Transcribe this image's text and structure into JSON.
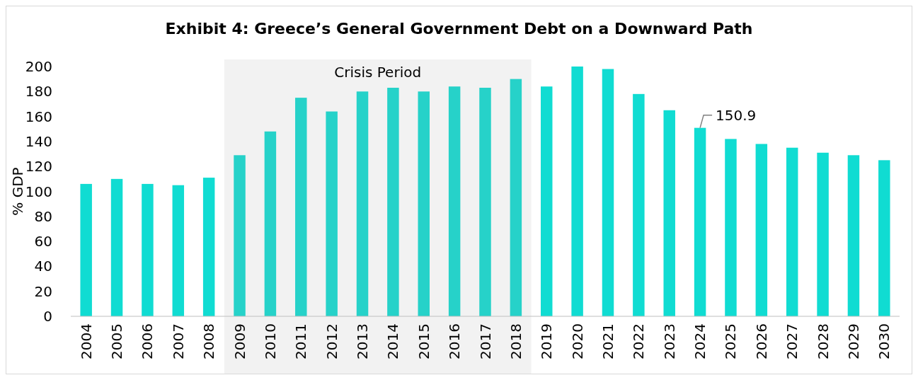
{
  "chart_data": {
    "type": "bar",
    "title": "Exhibit 4: Greece’s General Government Debt on a Downward Path",
    "ylabel": "% GDP",
    "categories": [
      "2004",
      "2005",
      "2006",
      "2007",
      "2008",
      "2009",
      "2010",
      "2011",
      "2012",
      "2013",
      "2014",
      "2015",
      "2016",
      "2017",
      "2018",
      "2019",
      "2020",
      "2021",
      "2022",
      "2023",
      "2024",
      "2025",
      "2026",
      "2027",
      "2028",
      "2029",
      "2030"
    ],
    "values": [
      106,
      110,
      106,
      105,
      111,
      129,
      148,
      175,
      164,
      180,
      183,
      180,
      184,
      183,
      190,
      184,
      200,
      198,
      178,
      165,
      150.9,
      142,
      138,
      135,
      131,
      129,
      125
    ],
    "colors": [
      "#10dcd2",
      "#10dcd2",
      "#10dcd2",
      "#10dcd2",
      "#10dcd2",
      "#26d2c9",
      "#26d2c9",
      "#26d2c9",
      "#26d2c9",
      "#26d2c9",
      "#26d2c9",
      "#26d2c9",
      "#26d2c9",
      "#26d2c9",
      "#26d2c9",
      "#10dcd2",
      "#10dcd2",
      "#10dcd2",
      "#10dcd2",
      "#10dcd2",
      "#10dcd2",
      "#10dcd2",
      "#10dcd2",
      "#10dcd2",
      "#10dcd2",
      "#10dcd2",
      "#10dcd2"
    ],
    "value_labels": [
      null,
      null,
      null,
      null,
      null,
      null,
      null,
      null,
      null,
      null,
      null,
      null,
      null,
      null,
      null,
      null,
      null,
      null,
      null,
      null,
      "150.9",
      null,
      null,
      null,
      null,
      null,
      null
    ],
    "bands": [
      {
        "axis": "x",
        "from": "2009",
        "to": "2018",
        "label": "Crisis Period",
        "color": "#f2f2f2"
      }
    ],
    "ylim": [
      0,
      200
    ],
    "yticks": [
      0,
      20,
      40,
      60,
      80,
      100,
      120,
      140,
      160,
      180,
      200
    ],
    "grid": false
  }
}
